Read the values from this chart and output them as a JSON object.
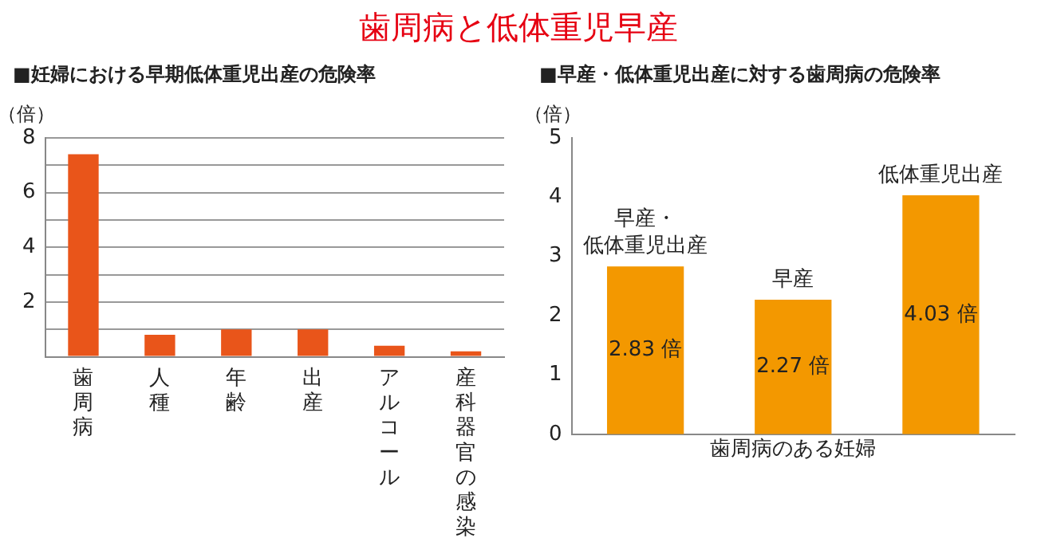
{
  "chart_data": [
    {
      "type": "bar",
      "title": "歯周病と低体重児早産",
      "subtitle": "■妊婦における早期低体重児出産の危険率",
      "ylabel": "（倍）",
      "categories": [
        "歯周病",
        "人種",
        "年齢",
        "出産",
        "アルコール",
        "産科器官の感染"
      ],
      "values": [
        7.4,
        0.8,
        1.0,
        1.0,
        0.4,
        0.2
      ],
      "color": "#e9551a",
      "ylim": [
        0,
        8
      ],
      "yticks": [
        {
          "value": 0,
          "label": null
        },
        {
          "value": 1,
          "label": null
        },
        2,
        {
          "value": 3,
          "label": null
        },
        4,
        {
          "value": 5,
          "label": null
        },
        6,
        {
          "value": 7,
          "label": null
        },
        8
      ],
      "grid": "y"
    },
    {
      "type": "bar",
      "subtitle": "■早産・低体重児出産に対する歯周病の危険率",
      "ylabel": "（倍）",
      "xlabel": "歯周病のある妊婦",
      "categories": [
        "早産・低体重児出産",
        "早産",
        "低体重児出産"
      ],
      "values": [
        2.83,
        2.27,
        4.03
      ],
      "color": "#f39800",
      "value_labels": [
        "2.83 倍",
        "2.27 倍",
        "4.03 倍"
      ],
      "ylim": [
        0,
        5
      ],
      "yticks": [
        0,
        1,
        2,
        3,
        4,
        5
      ],
      "tick_labels": "y"
    }
  ]
}
